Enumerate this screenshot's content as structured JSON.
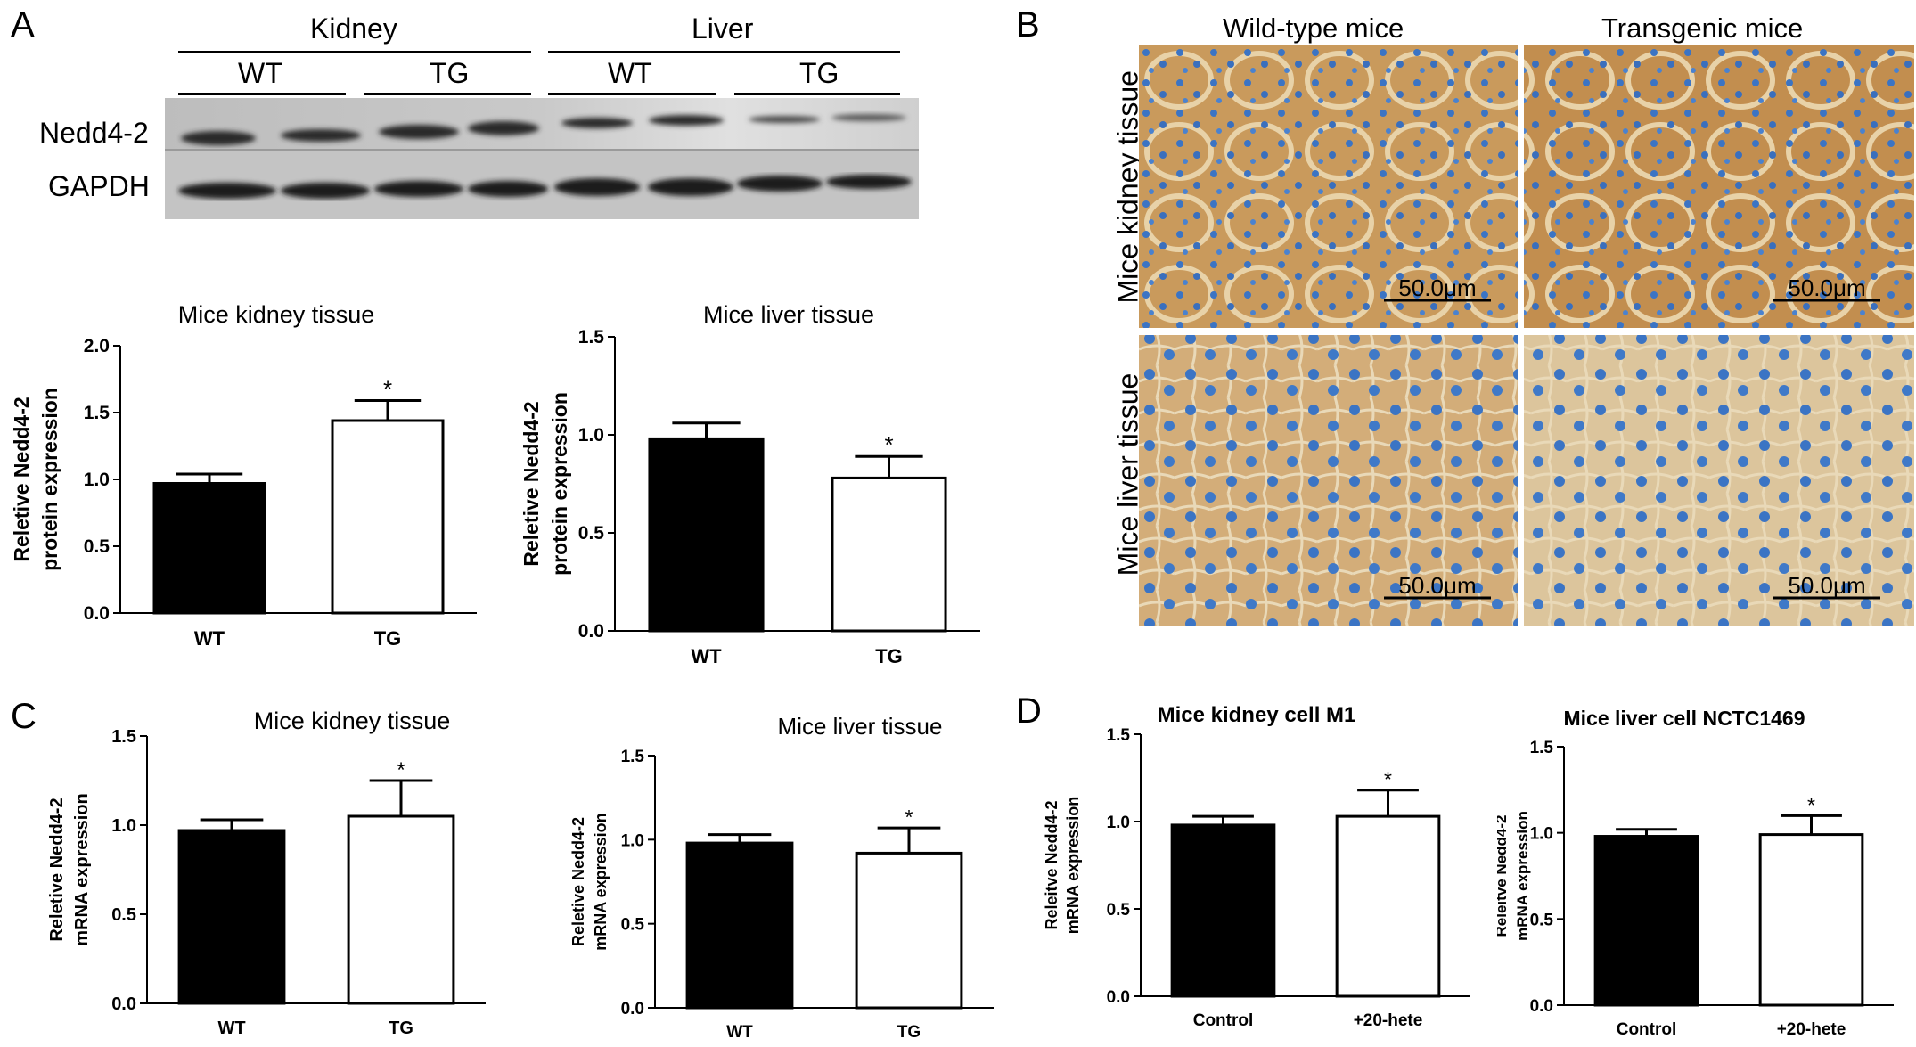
{
  "panels": {
    "a": "A",
    "b": "B",
    "c": "C",
    "d": "D"
  },
  "blot": {
    "groups": [
      "Kidney",
      "Liver"
    ],
    "subgroups": [
      "WT",
      "TG",
      "WT",
      "TG"
    ],
    "rows": [
      "Nedd4-2",
      "GAPDH"
    ]
  },
  "micrographs": {
    "columns": [
      "Wild-type mice",
      "Transgenic mice"
    ],
    "rows": [
      "Mice kidney tissue",
      "Mice liver tissue"
    ],
    "scale_label": "50.0μm"
  },
  "chart_data": [
    {
      "id": "a-kidney",
      "type": "bar",
      "title": "Mice kidney tissue",
      "ylabel": [
        "Reletive Nedd4-2",
        "protein expression"
      ],
      "categories": [
        "WT",
        "TG"
      ],
      "values": [
        0.97,
        1.44
      ],
      "errors": [
        0.07,
        0.15
      ],
      "significance": [
        "",
        "*"
      ],
      "fills": [
        "#000000",
        "#ffffff"
      ],
      "ylim": [
        0,
        2.0
      ],
      "yticks": [
        "0.0",
        "0.5",
        "1.0",
        "1.5",
        "2.0"
      ],
      "ytick_values": [
        0,
        0.5,
        1.0,
        1.5,
        2.0
      ]
    },
    {
      "id": "a-liver",
      "type": "bar",
      "title": "Mice liver tissue",
      "ylabel": [
        "Reletive Nedd4-2",
        "protein expression"
      ],
      "categories": [
        "WT",
        "TG"
      ],
      "values": [
        0.98,
        0.78
      ],
      "errors": [
        0.08,
        0.11
      ],
      "significance": [
        "",
        "*"
      ],
      "fills": [
        "#000000",
        "#ffffff"
      ],
      "ylim": [
        0,
        1.5
      ],
      "yticks": [
        "0.0",
        "0.5",
        "1.0",
        "1.5"
      ],
      "ytick_values": [
        0,
        0.5,
        1.0,
        1.5
      ]
    },
    {
      "id": "c-kidney",
      "type": "bar",
      "title": "Mice kidney tissue",
      "ylabel": [
        "Reletive Nedd4-2",
        "mRNA expression"
      ],
      "categories": [
        "WT",
        "TG"
      ],
      "values": [
        0.97,
        1.05
      ],
      "errors": [
        0.06,
        0.2
      ],
      "significance": [
        "",
        "*"
      ],
      "fills": [
        "#000000",
        "#ffffff"
      ],
      "ylim": [
        0,
        1.5
      ],
      "yticks": [
        "0.0",
        "0.5",
        "1.0",
        "1.5"
      ],
      "ytick_values": [
        0,
        0.5,
        1.0,
        1.5
      ]
    },
    {
      "id": "c-liver",
      "type": "bar",
      "title": "Mice liver tissue",
      "ylabel": [
        "Reletive Nedd4-2",
        "mRNA expression"
      ],
      "categories": [
        "WT",
        "TG"
      ],
      "values": [
        0.98,
        0.92
      ],
      "errors": [
        0.05,
        0.15
      ],
      "significance": [
        "",
        "*"
      ],
      "fills": [
        "#000000",
        "#ffffff"
      ],
      "ylim": [
        0,
        1.5
      ],
      "yticks": [
        "0.0",
        "0.5",
        "1.0",
        "1.5"
      ],
      "ytick_values": [
        0,
        0.5,
        1.0,
        1.5
      ]
    },
    {
      "id": "d-kidney",
      "type": "bar",
      "title": "Mice kidney cell M1",
      "ylabel": [
        "Releitve Nedd4-2",
        "mRNA expression"
      ],
      "categories": [
        "Control",
        "+20-hete"
      ],
      "values": [
        0.98,
        1.03
      ],
      "errors": [
        0.05,
        0.15
      ],
      "significance": [
        "",
        "*"
      ],
      "fills": [
        "#000000",
        "#ffffff"
      ],
      "ylim": [
        0,
        1.5
      ],
      "yticks": [
        "0.0",
        "0.5",
        "1.0",
        "1.5"
      ],
      "ytick_values": [
        0,
        0.5,
        1.0,
        1.5
      ]
    },
    {
      "id": "d-liver",
      "type": "bar",
      "title": "Mice liver cell NCTC1469",
      "ylabel": [
        "Releitve Nedd4-2",
        "mRNA expression"
      ],
      "categories": [
        "Control",
        "+20-hete"
      ],
      "values": [
        0.98,
        0.99
      ],
      "errors": [
        0.04,
        0.11
      ],
      "significance": [
        "",
        "*"
      ],
      "fills": [
        "#000000",
        "#ffffff"
      ],
      "ylim": [
        0,
        1.5
      ],
      "yticks": [
        "0.0",
        "0.5",
        "1.0",
        "1.5"
      ],
      "ytick_values": [
        0,
        0.5,
        1.0,
        1.5
      ]
    }
  ],
  "colors": {
    "bar_dark": "#000000",
    "bar_light": "#ffffff",
    "stain_brown": "#c89a5e",
    "nuclei_blue": "#3b74c4"
  }
}
